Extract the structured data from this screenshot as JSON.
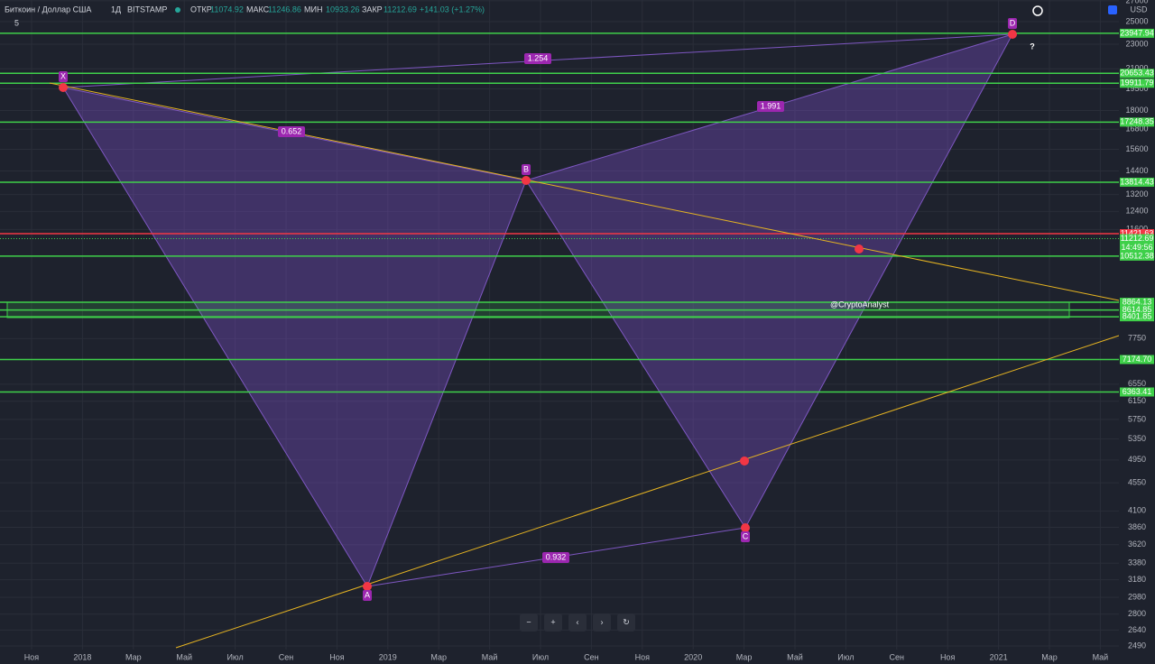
{
  "header": {
    "symbol": "Биткоин / Доллар США",
    "interval": "1Д",
    "exchange": "BITSTAMP",
    "ohlc": [
      {
        "label": "ОТКР",
        "value": "11074.92"
      },
      {
        "label": "МАКС",
        "value": "11246.86"
      },
      {
        "label": "МИН",
        "value": "10933.26"
      },
      {
        "label": "ЗАКР",
        "value": "11212.69"
      }
    ],
    "change": "+141.03 (+1.27%)",
    "indicators": "5"
  },
  "price_axis": {
    "currency": "USD",
    "ticks": [
      27000,
      25000,
      23000,
      21000,
      19500,
      18000,
      16800,
      15600,
      14400,
      13200,
      12400,
      11600,
      7750,
      6550,
      6150,
      5750,
      5350,
      4950,
      4550,
      4100,
      3860,
      3620,
      3380,
      3180,
      2980,
      2800,
      2640,
      2490
    ]
  },
  "levels": [
    23947.94,
    20653.43,
    19911.79,
    17248.35,
    13814.43,
    10512.38,
    8864.13,
    8614.85,
    8401.85,
    {
      "value": 7174.7,
      "label": "7174.70"
    },
    6363.41
  ],
  "resistance": 11421.63,
  "last_price": 11212.69,
  "countdown": "14:49:56",
  "time_axis": [
    "Ноя",
    "2018",
    "Мар",
    "Май",
    "Июл",
    "Сен",
    "Ноя",
    "2019",
    "Мар",
    "Май",
    "Июл",
    "Сен",
    "Ноя",
    "2020",
    "Мар",
    "Май",
    "Июл",
    "Сен",
    "Ноя",
    "2021",
    "Мар",
    "Май"
  ],
  "pattern": {
    "points": [
      "X",
      "A",
      "B",
      "C",
      "D"
    ],
    "ratios": [
      "1.254",
      "0.652",
      "1.991",
      "0.932"
    ],
    "question": "?"
  },
  "watermark": "@CryptoAnalyst",
  "toolbar": [
    "−",
    "+",
    "‹",
    "›",
    "↻"
  ]
}
